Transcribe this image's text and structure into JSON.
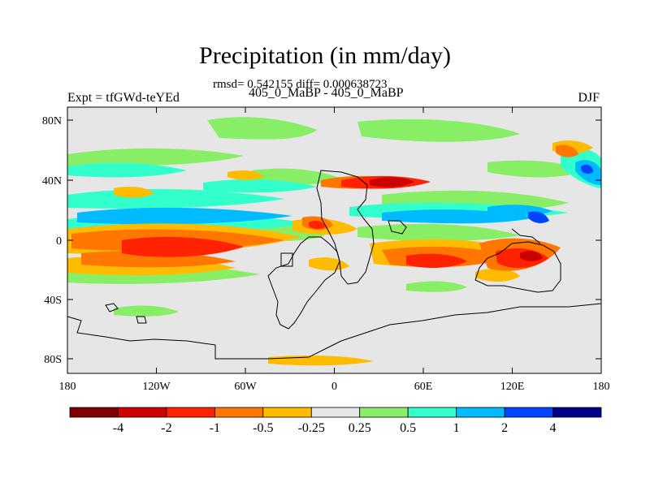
{
  "title": "Precipitation (in mm/day)",
  "stats_line": "rmsd= 0.542155 diff= 0.000638723",
  "case_line": "405_0_MaBP - 405_0_MaBP",
  "left_string": "Expt = tfGWd-teYEd",
  "right_string": "DJF",
  "lat_labels": [
    "80N",
    "40N",
    "0",
    "40S",
    "80S"
  ],
  "lon_labels": [
    "180",
    "120W",
    "60W",
    "0",
    "60E",
    "120E",
    "180"
  ],
  "colorbar": {
    "labels": [
      "-4",
      "-2",
      "-1",
      "-0.5",
      "-0.25",
      "0.25",
      "0.5",
      "1",
      "2",
      "4"
    ],
    "colors": [
      "#7f0000",
      "#cc0000",
      "#ff2200",
      "#ff7700",
      "#ffbb00",
      "#e6e6e6",
      "#88ee66",
      "#33ffcc",
      "#00bbff",
      "#0044ff",
      "#000088"
    ]
  },
  "palette": {
    "land_outline": "#000000",
    "background": "#e6e6e6"
  }
}
